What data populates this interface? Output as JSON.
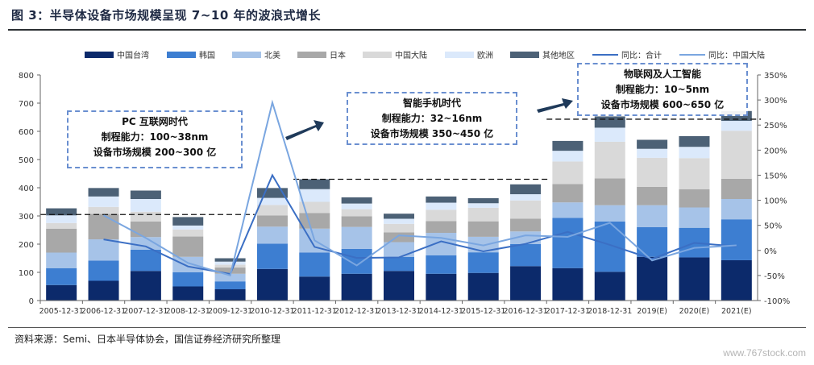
{
  "figure": {
    "title": "图 3：半导体设备市场规模呈现 7~10 年的波浪式增长",
    "source": "资料来源：Semi、日本半导体协会，国信证券经济研究所整理",
    "watermark": "www.767stock.com"
  },
  "annotations": [
    {
      "line1": "PC 互联网时代",
      "line2": "制程能力：100~38nm",
      "line3": "设备市场规模 200~300 亿"
    },
    {
      "line1": "智能手机时代",
      "line2": "制程能力：32~16nm",
      "line3": "设备市场规模 350~450 亿"
    },
    {
      "line1": "物联网及人工智能",
      "line2": "制程能力：10~5nm",
      "line3": "设备市场规模 600~650 亿"
    }
  ],
  "colors": {
    "taiwan": "#0c2a6b",
    "korea": "#3d7ed1",
    "namerica": "#a6c3e8",
    "japan": "#a8a8a8",
    "china": "#d9d9d9",
    "europe": "#dbe9fb",
    "other": "#4c6176",
    "yoy_total": "#3b6fc4",
    "yoy_china": "#7aa6e0",
    "arrow": "#1f3a5a"
  },
  "chart_data": {
    "type": "bar",
    "stacked": true,
    "categories": [
      "2005-12-31",
      "2006-12-31",
      "2007-12-31",
      "2008-12-31",
      "2009-12-31",
      "2010-12-31",
      "2011-12-31",
      "2012-12-31",
      "2013-12-31",
      "2014-12-31",
      "2015-12-31",
      "2016-12-31",
      "2017-12-31",
      "2018-12-31",
      "2019(E)",
      "2020(E)",
      "2021(E)"
    ],
    "ylim": [
      0,
      800
    ],
    "yticks": [
      "0",
      "100",
      "200",
      "300",
      "400",
      "500",
      "600",
      "700",
      "800"
    ],
    "y2lim": [
      -100,
      350
    ],
    "y2ticks": [
      "-100%",
      "-50%",
      "0%",
      "50%",
      "100%",
      "150%",
      "200%",
      "250%",
      "300%",
      "350%"
    ],
    "series": [
      {
        "name": "中国台湾",
        "key": "taiwan",
        "values": [
          55,
          70,
          105,
          50,
          40,
          112,
          85,
          95,
          105,
          95,
          98,
          122,
          115,
          102,
          155,
          153,
          143
        ]
      },
      {
        "name": "韩国",
        "key": "korea",
        "values": [
          60,
          72,
          75,
          50,
          28,
          90,
          85,
          88,
          50,
          65,
          73,
          78,
          178,
          178,
          105,
          105,
          145
        ]
      },
      {
        "name": "北美",
        "key": "namerica",
        "values": [
          55,
          75,
          45,
          55,
          27,
          60,
          85,
          78,
          52,
          80,
          55,
          45,
          55,
          58,
          78,
          72,
          72
        ]
      },
      {
        "name": "日本",
        "key": "japan",
        "values": [
          85,
          90,
          55,
          72,
          22,
          40,
          55,
          38,
          35,
          42,
          55,
          45,
          65,
          95,
          65,
          65,
          72
        ]
      },
      {
        "name": "中国大陆",
        "key": "china",
        "values": [
          20,
          25,
          35,
          25,
          10,
          37,
          40,
          25,
          30,
          40,
          48,
          65,
          80,
          130,
          103,
          110,
          170
        ]
      },
      {
        "name": "欧洲",
        "key": "europe",
        "values": [
          27,
          37,
          45,
          14,
          11,
          25,
          45,
          20,
          18,
          25,
          16,
          22,
          38,
          50,
          32,
          40,
          35
        ]
      },
      {
        "name": "其他地区",
        "key": "other",
        "values": [
          25,
          30,
          30,
          30,
          12,
          35,
          35,
          22,
          18,
          22,
          18,
          35,
          35,
          40,
          32,
          38,
          35
        ]
      }
    ],
    "lines": [
      {
        "name": "同比：合计",
        "key": "yoy_total",
        "values": [
          null,
          22,
          8,
          -32,
          -47,
          150,
          7,
          -15,
          -14,
          18,
          -2,
          13,
          37,
          11,
          -17,
          15,
          8
        ]
      },
      {
        "name": "同比：中国大陆",
        "key": "yoy_china",
        "values": [
          null,
          70,
          25,
          -25,
          -50,
          295,
          20,
          -30,
          30,
          25,
          10,
          30,
          27,
          55,
          -20,
          5,
          10
        ]
      }
    ],
    "reference_lines": [
      {
        "y": 305,
        "from": 0,
        "to": 4
      },
      {
        "y": 430,
        "from": 6,
        "to": 11
      },
      {
        "y": 643,
        "from": 12,
        "to": 16
      }
    ]
  }
}
